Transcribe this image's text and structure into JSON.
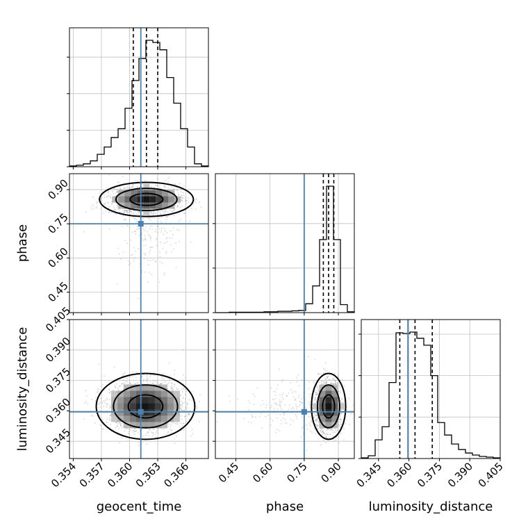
{
  "colors": {
    "truth": "#4682b4",
    "hist": "#000000",
    "quantile": "#000000",
    "grid": "#c0c0c0",
    "scatter": "#888888"
  },
  "chart_data": {
    "type": "corner",
    "parameters": [
      "geocent_time",
      "phase",
      "luminosity_distance"
    ],
    "truths": {
      "geocent_time": 0.3612,
      "phase": 0.75,
      "luminosity_distance": 0.3595
    },
    "quantiles": {
      "geocent_time": [
        0.3604,
        0.3618,
        0.363
      ],
      "phase": [
        0.834,
        0.857,
        0.88
      ],
      "luminosity_distance": [
        0.3555,
        0.363,
        0.3715
      ]
    },
    "ticks": {
      "geocent_time": [
        "0.354",
        "0.357",
        "0.360",
        "0.363",
        "0.366"
      ],
      "phase_x": [
        "0.45",
        "0.60",
        "0.75",
        "0.90"
      ],
      "phase_y": [
        "0.45",
        "0.60",
        "0.75",
        "0.90"
      ],
      "luminosity_distance_x": [
        "0.345",
        "0.360",
        "0.375",
        "0.390",
        "0.405"
      ],
      "luminosity_distance_y": [
        "0.345",
        "0.360",
        "0.375",
        "0.390",
        "0.405"
      ]
    },
    "axis_ranges": {
      "geocent_time": [
        0.3536,
        0.3684
      ],
      "phase": [
        0.36,
        0.97
      ],
      "luminosity_distance": [
        0.3365,
        0.405
      ]
    },
    "hist_geocent_time": {
      "bin_edges": [
        0.3536,
        0.35434,
        0.35508,
        0.35582,
        0.35656,
        0.3573,
        0.35804,
        0.35878,
        0.35952,
        0.36026,
        0.361,
        0.36174,
        0.36248,
        0.36322,
        0.36396,
        0.3647,
        0.36544,
        0.36618,
        0.36692,
        0.36766,
        0.3684
      ],
      "counts": [
        1,
        2,
        4,
        8,
        17,
        27,
        40,
        52,
        80,
        118,
        148,
        173,
        170,
        160,
        122,
        87,
        52,
        27,
        4,
        1
      ]
    },
    "hist_phase": {
      "bin_edges": [
        0.36,
        0.3905,
        0.421,
        0.4515,
        0.482,
        0.5125,
        0.543,
        0.5735,
        0.604,
        0.6345,
        0.665,
        0.6955,
        0.726,
        0.7565,
        0.787,
        0.8175,
        0.848,
        0.8785,
        0.909,
        0.9395,
        0.97
      ],
      "counts": [
        0,
        0,
        1,
        1,
        1,
        1,
        1,
        2,
        2,
        3,
        3,
        4,
        5,
        20,
        60,
        164,
        284,
        164,
        18,
        2
      ]
    },
    "hist_luminosity_distance": {
      "bin_edges": [
        0.3365,
        0.33993,
        0.34335,
        0.34678,
        0.3502,
        0.35363,
        0.35705,
        0.36048,
        0.3639,
        0.36733,
        0.37075,
        0.37418,
        0.3776,
        0.38103,
        0.38445,
        0.38788,
        0.3913,
        0.39473,
        0.39815,
        0.40158,
        0.405
      ],
      "counts": [
        1,
        4,
        27,
        46,
        110,
        182,
        181,
        183,
        174,
        164,
        120,
        52,
        34,
        21,
        13,
        8,
        5,
        3,
        2,
        1
      ]
    },
    "density_phase_vs_geocent_time": {
      "center": [
        0.3618,
        0.857
      ],
      "sigma": [
        0.002,
        0.03
      ]
    },
    "density_luminosity_distance_vs_geocent_time": {
      "center": [
        0.3617,
        0.3622
      ],
      "sigma": [
        0.0021,
        0.0065
      ]
    },
    "density_luminosity_distance_vs_phase": {
      "center": [
        0.857,
        0.3622
      ],
      "sigma": [
        0.03,
        0.0065
      ]
    }
  }
}
